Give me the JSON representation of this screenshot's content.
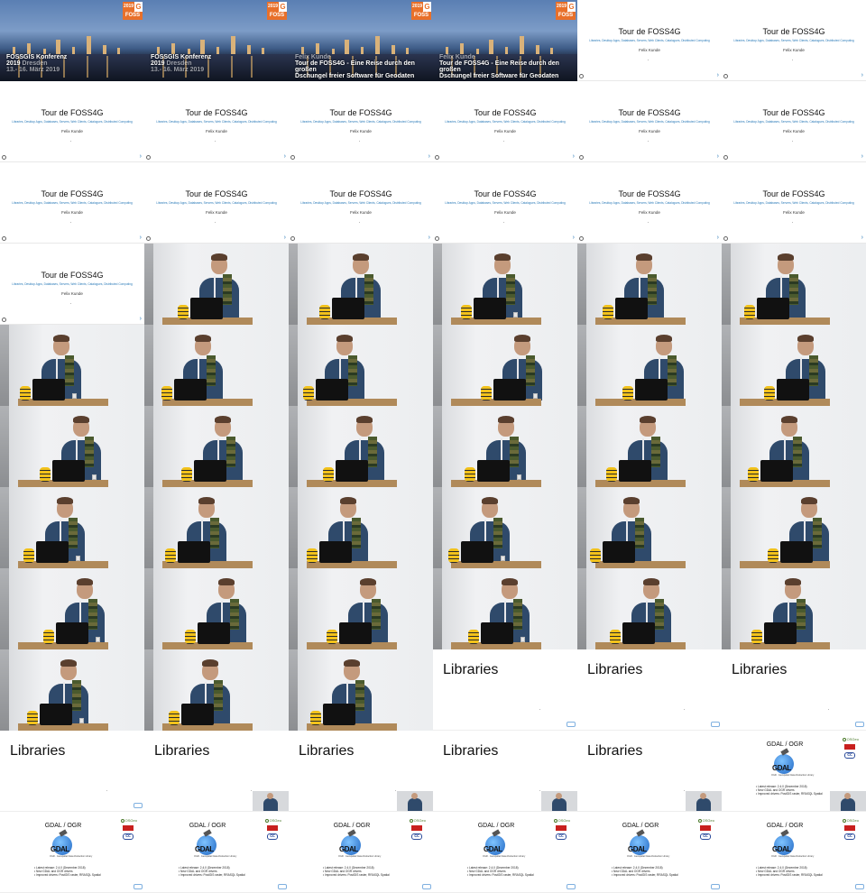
{
  "conference": {
    "logo_year": "2019",
    "logo_mark": "G",
    "logo_brand": "FOSS",
    "event_title": "FOSSGIS Konferenz",
    "event_year": "2019",
    "event_city": "Dresden",
    "event_dates": "13.- 16. März 2019",
    "speaker": "Felix Kunde",
    "talk_title_line1": "Tour de FOSS4G - Eine Reise durch den großen",
    "talk_title_line2": "Dschungel freier Software für Geodaten"
  },
  "tour_slide": {
    "title": "Tour de FOSS4G",
    "subtitle": "Libraries, Desktop Apps, Databases, Servers, Web Clients, Catalogues, Distributed Computing",
    "author": "Felix Kunde",
    "next_arrow": "›"
  },
  "libraries_slide": {
    "title": "Libraries"
  },
  "gdal_slide": {
    "title": "GDAL / OGR",
    "osgeo_label": "OSGeo",
    "cc_label": "cc",
    "logo_text": "GDAL",
    "logo_tagline": "OGR · Geospatial Data Abstraction Library",
    "bullets": [
      "Latest release: 2.4.0 (Dezember 2018)",
      "New GDAL and OGR drivers",
      "Improved drivers: PostGIS raster, RRASQL Spatial"
    ]
  },
  "colors": {
    "accent_orange": "#e8702a",
    "link_blue": "#2a7ab8",
    "osgeo_green": "#4a7a2a"
  },
  "tiles": [
    "title-event",
    "title-event",
    "title-talk",
    "title-talk",
    "tour",
    "tour",
    "tour",
    "tour",
    "tour",
    "tour",
    "tour",
    "tour",
    "tour",
    "tour",
    "tour",
    "tour",
    "tour",
    "tour",
    "tour",
    "video",
    "video",
    "video",
    "video",
    "video",
    "video",
    "video",
    "video",
    "video",
    "video",
    "video",
    "video",
    "video",
    "video",
    "video",
    "video",
    "video",
    "video",
    "video",
    "video",
    "video",
    "video",
    "video",
    "video",
    "video",
    "video",
    "video",
    "video",
    "video",
    "video",
    "video",
    "video",
    "libraries",
    "libraries",
    "libraries",
    "libraries",
    "libraries-pip",
    "libraries-pip",
    "libraries-pip",
    "libraries-pip",
    "gdal-pip",
    "gdal",
    "gdal",
    "gdal",
    "gdal",
    "gdal",
    "gdal"
  ]
}
